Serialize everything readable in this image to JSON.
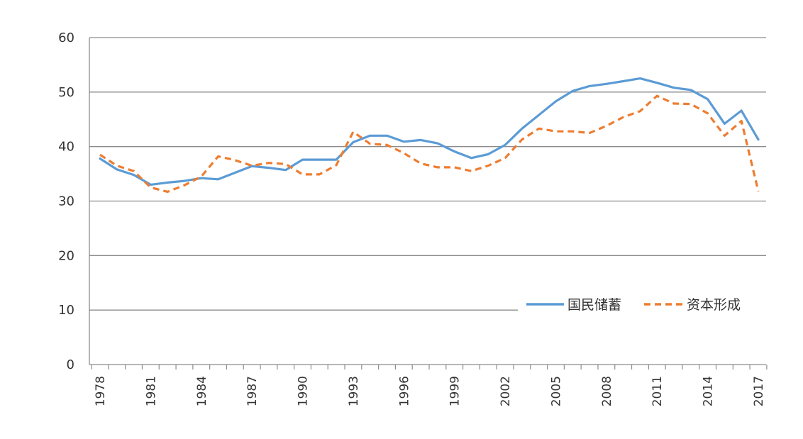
{
  "chart_data": {
    "type": "line",
    "title": "",
    "xlabel": "",
    "ylabel": "",
    "ylim": [
      0,
      60
    ],
    "yticks": [
      0,
      10,
      20,
      30,
      40,
      50,
      60
    ],
    "x": [
      1978,
      1979,
      1980,
      1981,
      1982,
      1983,
      1984,
      1985,
      1986,
      1987,
      1988,
      1989,
      1990,
      1991,
      1992,
      1993,
      1994,
      1995,
      1996,
      1997,
      1998,
      1999,
      2000,
      2001,
      2002,
      2003,
      2004,
      2005,
      2006,
      2007,
      2008,
      2009,
      2010,
      2011,
      2012,
      2013,
      2014,
      2015,
      2016,
      2017
    ],
    "xtick_labels": [
      "1978",
      "1981",
      "1984",
      "1987",
      "1990",
      "1993",
      "1996",
      "1999",
      "2002",
      "2005",
      "2008",
      "2011",
      "2014",
      "2017"
    ],
    "series": [
      {
        "name": "国民储蓄",
        "color": "#5b9bd5",
        "style": "solid",
        "values": [
          37.8,
          35.8,
          34.8,
          33.0,
          33.4,
          33.7,
          34.2,
          34.0,
          35.2,
          36.4,
          36.1,
          35.7,
          37.6,
          37.6,
          37.6,
          40.8,
          42.0,
          42.0,
          40.9,
          41.2,
          40.6,
          39.1,
          37.9,
          38.6,
          40.3,
          43.3,
          45.8,
          48.3,
          50.2,
          51.1,
          51.5,
          52.0,
          52.5,
          51.7,
          50.8,
          50.4,
          48.7,
          44.2,
          46.6,
          41.3
        ]
      },
      {
        "name": "资本形成",
        "color": "#ed7d31",
        "style": "dashed",
        "values": [
          38.5,
          36.5,
          35.5,
          32.5,
          31.7,
          32.9,
          34.5,
          38.2,
          37.5,
          36.5,
          37.0,
          36.8,
          34.9,
          34.9,
          36.6,
          42.7,
          40.5,
          40.3,
          38.8,
          36.9,
          36.2,
          36.2,
          35.5,
          36.5,
          37.9,
          41.3,
          43.3,
          42.8,
          42.8,
          42.5,
          43.8,
          45.4,
          46.5,
          49.3,
          47.9,
          47.8,
          46.1,
          42.0,
          44.7,
          31.8
        ]
      }
    ],
    "legend_position": "bottom-right",
    "grid": true
  }
}
